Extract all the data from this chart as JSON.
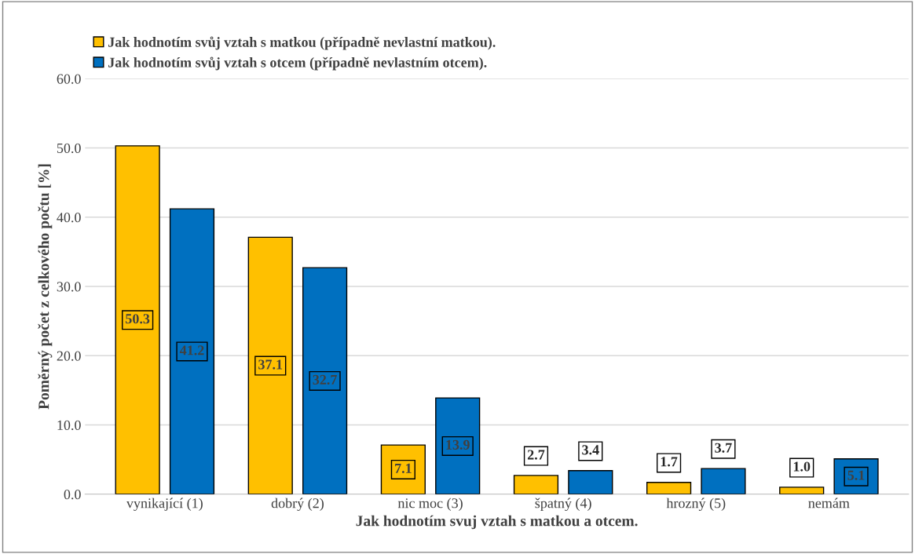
{
  "chart_data": {
    "type": "bar",
    "xlabel": "Jak hodnotím svuj vztah s matkou a otcem.",
    "ylabel": "Poměrný počet z celkového počtu [%]",
    "categories": [
      "vynikající (1)",
      "dobrý (2)",
      "nic moc (3)",
      "špatný (4)",
      "hrozný (5)",
      "nemám"
    ],
    "series": [
      {
        "name": "Jak hodnotím svůj vztah s matkou (případně nevlastní matkou).",
        "color": "#ffc000",
        "values": [
          50.3,
          37.1,
          7.1,
          2.7,
          1.7,
          1.0
        ],
        "value_labels": [
          "50.3",
          "37.1",
          "7.1",
          "2.7",
          "1.7",
          "1.0"
        ]
      },
      {
        "name": "Jak hodnotím svůj vztah s otcem (případně nevlastním otcem).",
        "color": "#0070c0",
        "values": [
          41.2,
          32.7,
          13.9,
          3.4,
          3.7,
          5.1
        ],
        "value_labels": [
          "41.2",
          "32.7",
          "13.9",
          "3.4",
          "3.7",
          "5.1"
        ]
      }
    ],
    "ylim": [
      0,
      60
    ],
    "yticks": [
      {
        "value": 0,
        "label": "0.0"
      },
      {
        "value": 10,
        "label": "10.0"
      },
      {
        "value": 20,
        "label": "20.0"
      },
      {
        "value": 30,
        "label": "30.0"
      },
      {
        "value": 40,
        "label": "40.0"
      },
      {
        "value": 50,
        "label": "50.0"
      },
      {
        "value": 60,
        "label": "60.0"
      }
    ],
    "grid": "y",
    "legend": "top left"
  }
}
